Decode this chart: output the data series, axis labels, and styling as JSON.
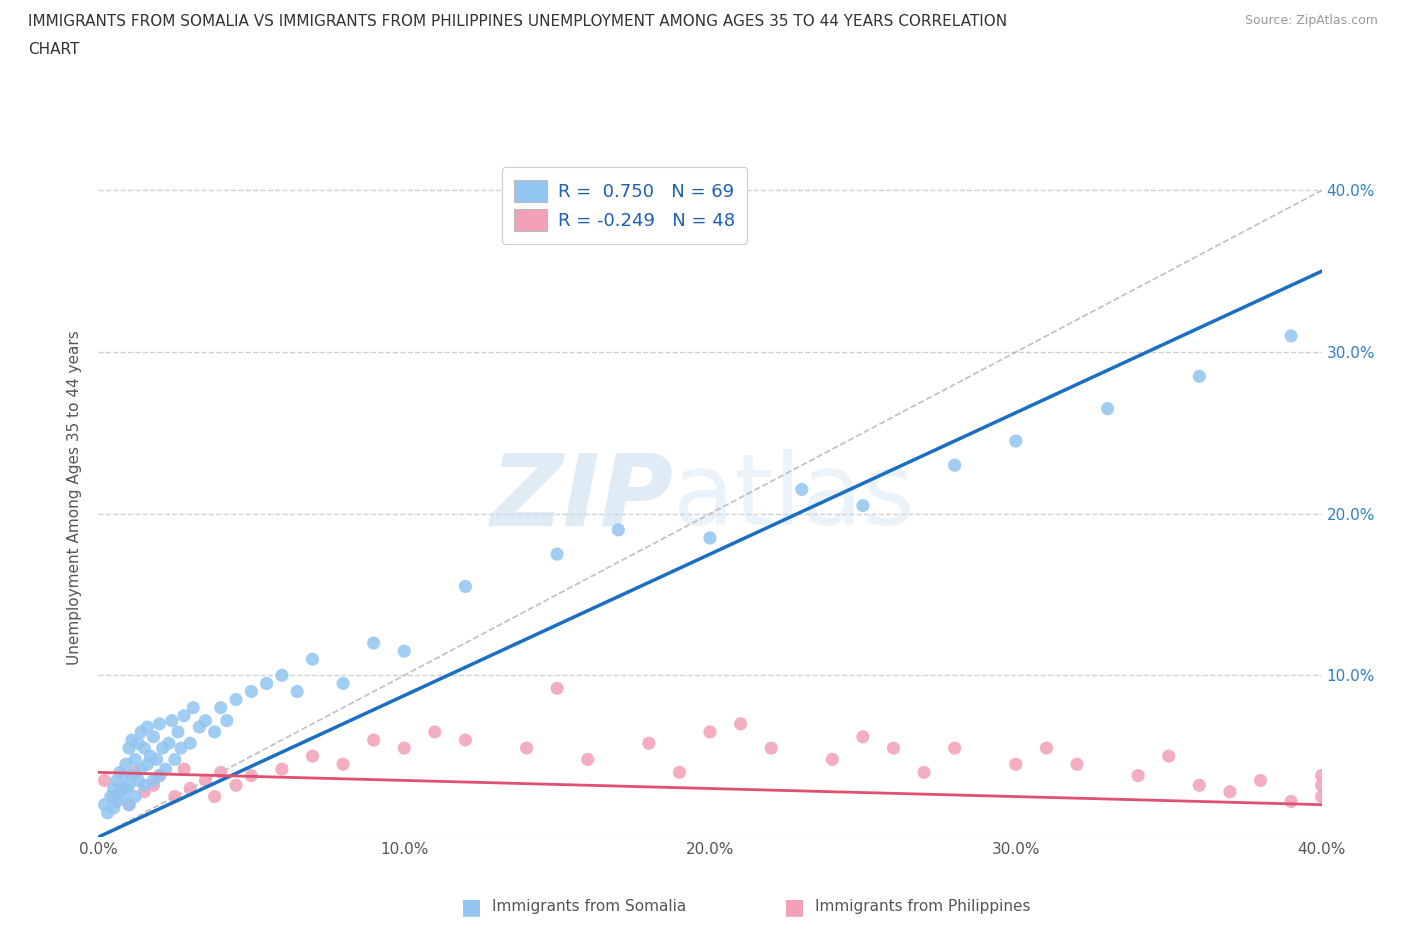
{
  "title_line1": "IMMIGRANTS FROM SOMALIA VS IMMIGRANTS FROM PHILIPPINES UNEMPLOYMENT AMONG AGES 35 TO 44 YEARS CORRELATION",
  "title_line2": "CHART",
  "source": "Source: ZipAtlas.com",
  "ylabel": "Unemployment Among Ages 35 to 44 years",
  "xlim": [
    0.0,
    0.4
  ],
  "ylim": [
    0.0,
    0.42
  ],
  "x_ticks": [
    0.0,
    0.1,
    0.2,
    0.3,
    0.4
  ],
  "x_tick_labels": [
    "0.0%",
    "10.0%",
    "20.0%",
    "30.0%",
    "40.0%"
  ],
  "y_ticks": [
    0.0,
    0.1,
    0.2,
    0.3,
    0.4
  ],
  "y_tick_labels_right": [
    "",
    "10.0%",
    "20.0%",
    "30.0%",
    "40.0%"
  ],
  "somalia_color": "#92c5f0",
  "somalia_line_color": "#1a6fc4",
  "philippines_color": "#f2a0b8",
  "philippines_line_color": "#e05070",
  "watermark_zip": "ZIP",
  "watermark_atlas": "atlas",
  "R_somalia": 0.75,
  "N_somalia": 69,
  "R_philippines": -0.249,
  "N_philippines": 48,
  "somalia_trend_x0": 0.0,
  "somalia_trend_y0": 0.0,
  "somalia_trend_x1": 0.4,
  "somalia_trend_y1": 0.35,
  "philippines_trend_x0": 0.0,
  "philippines_trend_y0": 0.04,
  "philippines_trend_x1": 0.4,
  "philippines_trend_y1": 0.02,
  "diag_line_color": "#b0b0b0",
  "grid_color": "#cccccc",
  "bg_color": "#ffffff",
  "somalia_x": [
    0.002,
    0.003,
    0.004,
    0.005,
    0.005,
    0.006,
    0.006,
    0.007,
    0.007,
    0.008,
    0.008,
    0.009,
    0.009,
    0.01,
    0.01,
    0.01,
    0.011,
    0.011,
    0.012,
    0.012,
    0.013,
    0.013,
    0.014,
    0.014,
    0.015,
    0.015,
    0.016,
    0.016,
    0.017,
    0.018,
    0.018,
    0.019,
    0.02,
    0.02,
    0.021,
    0.022,
    0.023,
    0.024,
    0.025,
    0.026,
    0.027,
    0.028,
    0.03,
    0.031,
    0.033,
    0.035,
    0.038,
    0.04,
    0.042,
    0.045,
    0.05,
    0.055,
    0.06,
    0.065,
    0.07,
    0.08,
    0.09,
    0.1,
    0.12,
    0.15,
    0.17,
    0.2,
    0.23,
    0.25,
    0.28,
    0.3,
    0.33,
    0.36,
    0.39
  ],
  "somalia_y": [
    0.02,
    0.015,
    0.025,
    0.018,
    0.03,
    0.022,
    0.035,
    0.028,
    0.04,
    0.025,
    0.038,
    0.03,
    0.045,
    0.02,
    0.032,
    0.055,
    0.038,
    0.06,
    0.025,
    0.048,
    0.035,
    0.058,
    0.042,
    0.065,
    0.032,
    0.055,
    0.045,
    0.068,
    0.05,
    0.035,
    0.062,
    0.048,
    0.038,
    0.07,
    0.055,
    0.042,
    0.058,
    0.072,
    0.048,
    0.065,
    0.055,
    0.075,
    0.058,
    0.08,
    0.068,
    0.072,
    0.065,
    0.08,
    0.072,
    0.085,
    0.09,
    0.095,
    0.1,
    0.09,
    0.11,
    0.095,
    0.12,
    0.115,
    0.155,
    0.175,
    0.19,
    0.185,
    0.215,
    0.205,
    0.23,
    0.245,
    0.265,
    0.285,
    0.31
  ],
  "philippines_x": [
    0.002,
    0.005,
    0.008,
    0.01,
    0.012,
    0.015,
    0.018,
    0.02,
    0.025,
    0.028,
    0.03,
    0.035,
    0.038,
    0.04,
    0.045,
    0.05,
    0.06,
    0.07,
    0.08,
    0.09,
    0.1,
    0.11,
    0.12,
    0.14,
    0.15,
    0.16,
    0.18,
    0.19,
    0.2,
    0.21,
    0.22,
    0.24,
    0.25,
    0.26,
    0.27,
    0.28,
    0.3,
    0.31,
    0.32,
    0.34,
    0.35,
    0.36,
    0.37,
    0.38,
    0.39,
    0.4,
    0.4,
    0.4
  ],
  "philippines_y": [
    0.035,
    0.025,
    0.03,
    0.02,
    0.04,
    0.028,
    0.032,
    0.038,
    0.025,
    0.042,
    0.03,
    0.035,
    0.025,
    0.04,
    0.032,
    0.038,
    0.042,
    0.05,
    0.045,
    0.06,
    0.055,
    0.065,
    0.06,
    0.055,
    0.092,
    0.048,
    0.058,
    0.04,
    0.065,
    0.07,
    0.055,
    0.048,
    0.062,
    0.055,
    0.04,
    0.055,
    0.045,
    0.055,
    0.045,
    0.038,
    0.05,
    0.032,
    0.028,
    0.035,
    0.022,
    0.025,
    0.032,
    0.038
  ]
}
